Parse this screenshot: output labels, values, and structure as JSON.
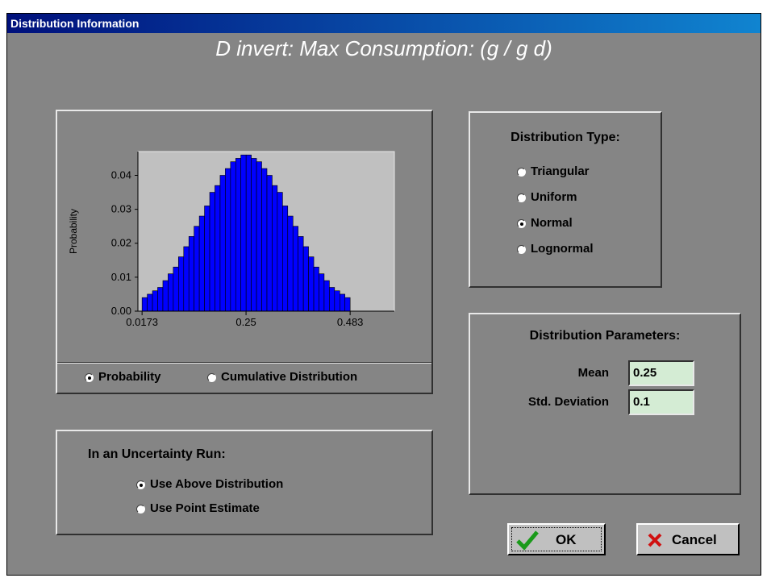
{
  "window": {
    "title": "Distribution Information"
  },
  "heading": "D invert: Max Consumption: (g / g d)",
  "chart_data": {
    "type": "histogram",
    "ylabel": "Probability",
    "color": "#0000ff",
    "bins": [
      0.0173,
      0.0289,
      0.0406,
      0.0522,
      0.0639,
      0.0755,
      0.0872,
      0.0988,
      0.1105,
      0.1221,
      0.1337,
      0.1454,
      0.157,
      0.1687,
      0.1803,
      0.192,
      0.2036,
      0.2153,
      0.2269,
      0.2385,
      0.2502,
      0.2618,
      0.2735,
      0.2851,
      0.2968,
      0.3084,
      0.32,
      0.3317,
      0.3433,
      0.355,
      0.3666,
      0.3783,
      0.3899,
      0.4016,
      0.4132,
      0.4248,
      0.4365,
      0.4481,
      0.4598,
      0.4714,
      0.483
    ],
    "values": [
      0.004,
      0.005,
      0.006,
      0.007,
      0.009,
      0.011,
      0.013,
      0.016,
      0.019,
      0.022,
      0.025,
      0.028,
      0.031,
      0.035,
      0.037,
      0.04,
      0.042,
      0.044,
      0.045,
      0.046,
      0.046,
      0.045,
      0.044,
      0.042,
      0.04,
      0.037,
      0.035,
      0.031,
      0.028,
      0.025,
      0.022,
      0.019,
      0.016,
      0.013,
      0.011,
      0.009,
      0.007,
      0.006,
      0.005,
      0.004
    ],
    "xlim": [
      0.008,
      0.582
    ],
    "ylim": [
      0,
      0.047
    ],
    "xticks": [
      0.0173,
      0.25,
      0.483
    ],
    "yticks": [
      {
        "value": 0,
        "label": "0.00"
      },
      0.01,
      0.02,
      0.03,
      0.04
    ]
  },
  "chart_options": {
    "options": [
      "Probability",
      "Cumulative Distribution"
    ],
    "selected": 0
  },
  "distribution_type": {
    "title": "Distribution Type:",
    "options": [
      "Triangular",
      "Uniform",
      "Normal",
      "Lognormal"
    ],
    "selected": 2
  },
  "parameters": {
    "title": "Distribution Parameters:",
    "fields": [
      {
        "label": "Mean",
        "value": 0.25
      },
      {
        "label": "Std. Deviation",
        "value": 0.1
      }
    ]
  },
  "uncertainty": {
    "title": "In an Uncertainty Run:",
    "options": [
      "Use Above Distribution",
      "Use Point Estimate"
    ],
    "selected": 0
  },
  "buttons": [
    "OK",
    "Cancel"
  ]
}
